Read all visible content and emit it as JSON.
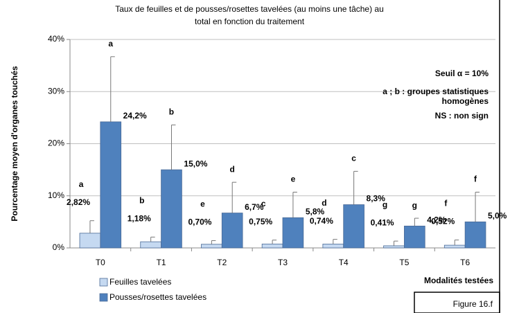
{
  "chart_data": {
    "type": "bar",
    "title_lines": [
      "Taux de feuilles et de pousses/rosettes tavelées (au moins une tâche) au",
      "total en fonction  du traitement"
    ],
    "ylabel": "Pourcentage moyen d'organes touchés",
    "xlabel": "Modalités testées",
    "annotations": [
      "Seuil α = 10%",
      "a ; b : groupes statistiques",
      "homogènes",
      "NS : non sign"
    ],
    "figure_label": "Figure 16.f",
    "categories": [
      "T0",
      "T1",
      "T2",
      "T3",
      "T4",
      "T5",
      "T6"
    ],
    "series": [
      {
        "name": "Feuilles tavelées",
        "color": "#c5d9f1",
        "label_color": "#000000",
        "values": [
          2.82,
          1.18,
          0.7,
          0.75,
          0.74,
          0.41,
          0.52
        ],
        "value_labels": [
          "2,82%",
          "1,18%",
          "0,70%",
          "0,75%",
          "0,74%",
          "0,41%",
          "0,52%"
        ],
        "errors": [
          2.4,
          0.9,
          0.7,
          0.75,
          0.9,
          0.9,
          1.0
        ],
        "letters": [
          "a",
          "b",
          "e",
          "c",
          "d",
          "g",
          "f"
        ]
      },
      {
        "name": "Pousses/rosettes tavelées",
        "color": "#4f81bd",
        "label_color": "#4f81bd",
        "values": [
          24.2,
          15.0,
          6.7,
          5.8,
          8.3,
          4.2,
          5.0
        ],
        "value_labels": [
          "24,2%",
          "15,0%",
          "6,7%",
          "5,8%",
          "8,3%",
          "4,2%",
          "5,0%"
        ],
        "errors": [
          12.5,
          8.6,
          5.9,
          4.9,
          6.4,
          1.5,
          5.7
        ],
        "letters": [
          "a",
          "b",
          "d",
          "e",
          "c",
          "g",
          "f"
        ]
      }
    ],
    "ylim": [
      0,
      40
    ],
    "yticks": [
      {
        "value": 0,
        "label": "0%"
      },
      {
        "value": 10,
        "label": "10%"
      },
      {
        "value": 20,
        "label": "20%"
      },
      {
        "value": 30,
        "label": "30%"
      },
      {
        "value": 40,
        "label": "40%"
      }
    ],
    "grid": true
  }
}
